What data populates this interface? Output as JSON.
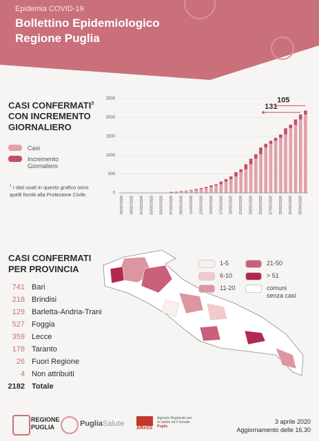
{
  "header": {
    "subtitle": "Epidemia COVID-19",
    "title_line1": "Bollettino Epidemiologico",
    "title_line2": "Regione Puglia"
  },
  "chart_data": {
    "type": "bar",
    "stacked": true,
    "title_lines": [
      "CASI CONFERMATI",
      "CON INCREMENTO",
      "GIORNALIERO"
    ],
    "title_mark": "3",
    "note_mark": "1",
    "note": "I dati usati in questo grafico sono quelli forniti alla Protezione Civile.",
    "categories": [
      "26/02/2020",
      null,
      "28/02/2020",
      null,
      "01/03/2020",
      null,
      "03/03/2020",
      null,
      "05/03/2020",
      null,
      "07/03/2020",
      null,
      "09/03/2020",
      null,
      "11/03/2020",
      null,
      "13/03/2020",
      null,
      "15/03/2020",
      null,
      "17/03/2020",
      null,
      "19/03/2020",
      null,
      "21/03/2020",
      null,
      "23/03/2020",
      null,
      "25/03/2020",
      null,
      "27/03/2020",
      null,
      "29/03/2020",
      null,
      "31/03/2020",
      null,
      "02/04/2020",
      null
    ],
    "series": [
      {
        "name": "Casi",
        "color": "#e3a1aa",
        "values": [
          0,
          0,
          0,
          1,
          1,
          1,
          2,
          4,
          5,
          8,
          8,
          26,
          35,
          50,
          62,
          80,
          105,
          129,
          158,
          200,
          230,
          300,
          367,
          437,
          552,
          625,
          758,
          907,
          1025,
          1203,
          1302,
          1382,
          1459,
          1549,
          1712,
          1806,
          1946,
          2077
        ]
      },
      {
        "name": "Incremento Giornaliero",
        "color": "#c44d66",
        "values": [
          0,
          0,
          1,
          0,
          0,
          1,
          2,
          1,
          3,
          0,
          18,
          9,
          15,
          12,
          18,
          25,
          24,
          29,
          42,
          30,
          70,
          67,
          70,
          115,
          73,
          133,
          149,
          118,
          178,
          99,
          80,
          77,
          90,
          163,
          94,
          140,
          131,
          105
        ]
      }
    ],
    "ylim": [
      0,
      2500
    ],
    "yticks": [
      0,
      500,
      1000,
      1500,
      2000,
      2500
    ],
    "grid": true
  },
  "provinces": {
    "title_lines": [
      "CASI CONFERMATI",
      "PER PROVINCIA"
    ],
    "rows": [
      {
        "value": 741,
        "name": "Bari"
      },
      {
        "value": 218,
        "name": "Brindisi"
      },
      {
        "value": 129,
        "name": "Barletta-Andria-Trani"
      },
      {
        "value": 527,
        "name": "Foggia"
      },
      {
        "value": 359,
        "name": "Lecce"
      },
      {
        "value": 178,
        "name": "Taranto"
      },
      {
        "value": 26,
        "name": "Fuori Regione"
      },
      {
        "value": 4,
        "name": "Non attribuiti"
      }
    ],
    "total": {
      "value": 2182,
      "name": "Totale"
    }
  },
  "map_legend": [
    {
      "label": "1-5",
      "color": "#fbeeee"
    },
    {
      "label": "6-10",
      "color": "#f2c9cd"
    },
    {
      "label": "11-20",
      "color": "#dc95a1"
    },
    {
      "label": "21-50",
      "color": "#c8607a"
    },
    {
      "label": "> 51",
      "color": "#b02a4d"
    },
    {
      "label": "comuni senza casi",
      "color": "#ffffff"
    }
  ],
  "footer": {
    "region_1": "REGIONE",
    "region_2": "PUGLIA",
    "ps_1": "Puglia",
    "ps_2": "Salute",
    "aress": "AReSS",
    "aress_note": "Agenzia Regionale per la Salute ed il Sociale",
    "aress_puglia": "Puglia",
    "date": "3 aprile 2020",
    "update": "Aggiornamento delle 16.30"
  }
}
